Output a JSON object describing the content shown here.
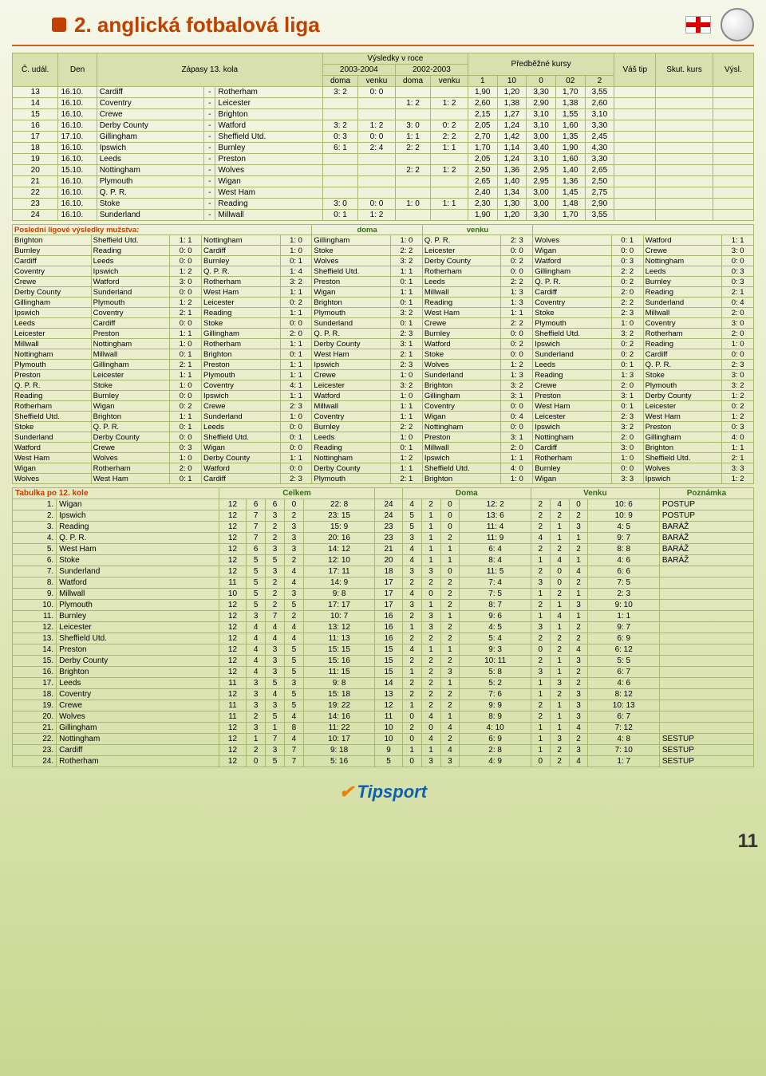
{
  "header": {
    "title": "2. anglická fotbalová liga",
    "page_number": "11",
    "tipsport": "Tipsport"
  },
  "matches_header": {
    "c_udal": "Č. udál.",
    "den": "Den",
    "zapasy": "Zápasy 13. kola",
    "vysledky": "Výsledky v roce",
    "y0304": "2003-2004",
    "y0203": "2002-2003",
    "doma": "doma",
    "venku": "venku",
    "predbezne": "Předběžné kursy",
    "k1": "1",
    "k10": "10",
    "k0": "0",
    "k02": "02",
    "k2": "2",
    "vas_tip": "Váš tip",
    "skut": "Skut. kurs",
    "vysl": "Výsl."
  },
  "matches": [
    {
      "n": "13",
      "d": "16.10.",
      "h": "Cardiff",
      "a": "Rotherham",
      "r1": "3: 2",
      "r2": "0: 0",
      "r3": "",
      "r4": "",
      "o1": "1,90",
      "o2": "1,20",
      "o3": "3,30",
      "o4": "1,70",
      "o5": "3,55"
    },
    {
      "n": "14",
      "d": "16.10.",
      "h": "Coventry",
      "a": "Leicester",
      "r1": "",
      "r2": "",
      "r3": "1: 2",
      "r4": "1: 2",
      "o1": "2,60",
      "o2": "1,38",
      "o3": "2,90",
      "o4": "1,38",
      "o5": "2,60"
    },
    {
      "n": "15",
      "d": "16.10.",
      "h": "Crewe",
      "a": "Brighton",
      "r1": "",
      "r2": "",
      "r3": "",
      "r4": "",
      "o1": "2,15",
      "o2": "1,27",
      "o3": "3,10",
      "o4": "1,55",
      "o5": "3,10"
    },
    {
      "n": "16",
      "d": "16.10.",
      "h": "Derby County",
      "a": "Watford",
      "r1": "3: 2",
      "r2": "1: 2",
      "r3": "3: 0",
      "r4": "0: 2",
      "o1": "2,05",
      "o2": "1,24",
      "o3": "3,10",
      "o4": "1,60",
      "o5": "3,30"
    },
    {
      "n": "17",
      "d": "17.10.",
      "h": "Gillingham",
      "a": "Sheffield Utd.",
      "r1": "0: 3",
      "r2": "0: 0",
      "r3": "1: 1",
      "r4": "2: 2",
      "o1": "2,70",
      "o2": "1,42",
      "o3": "3,00",
      "o4": "1,35",
      "o5": "2,45"
    },
    {
      "n": "18",
      "d": "16.10.",
      "h": "Ipswich",
      "a": "Burnley",
      "r1": "6: 1",
      "r2": "2: 4",
      "r3": "2: 2",
      "r4": "1: 1",
      "o1": "1,70",
      "o2": "1,14",
      "o3": "3,40",
      "o4": "1,90",
      "o5": "4,30"
    },
    {
      "n": "19",
      "d": "16.10.",
      "h": "Leeds",
      "a": "Preston",
      "r1": "",
      "r2": "",
      "r3": "",
      "r4": "",
      "o1": "2,05",
      "o2": "1,24",
      "o3": "3,10",
      "o4": "1,60",
      "o5": "3,30"
    },
    {
      "n": "20",
      "d": "15.10.",
      "h": "Nottingham",
      "a": "Wolves",
      "r1": "",
      "r2": "",
      "r3": "2: 2",
      "r4": "1: 2",
      "o1": "2,50",
      "o2": "1,36",
      "o3": "2,95",
      "o4": "1,40",
      "o5": "2,65"
    },
    {
      "n": "21",
      "d": "16.10.",
      "h": "Plymouth",
      "a": "Wigan",
      "r1": "",
      "r2": "",
      "r3": "",
      "r4": "",
      "o1": "2,65",
      "o2": "1,40",
      "o3": "2,95",
      "o4": "1,36",
      "o5": "2,50"
    },
    {
      "n": "22",
      "d": "16.10.",
      "h": "Q. P. R.",
      "a": "West Ham",
      "r1": "",
      "r2": "",
      "r3": "",
      "r4": "",
      "o1": "2,40",
      "o2": "1,34",
      "o3": "3,00",
      "o4": "1,45",
      "o5": "2,75"
    },
    {
      "n": "23",
      "d": "16.10.",
      "h": "Stoke",
      "a": "Reading",
      "r1": "3: 0",
      "r2": "0: 0",
      "r3": "1: 0",
      "r4": "1: 1",
      "o1": "2,30",
      "o2": "1,30",
      "o3": "3,00",
      "o4": "1,48",
      "o5": "2,90"
    },
    {
      "n": "24",
      "d": "16.10.",
      "h": "Sunderland",
      "a": "Millwall",
      "r1": "0: 1",
      "r2": "1: 2",
      "r3": "",
      "r4": "",
      "o1": "1,90",
      "o2": "1,20",
      "o3": "3,30",
      "o4": "1,70",
      "o5": "3,55"
    }
  ],
  "results_title": "Poslední ligové výsledky mužstva:",
  "results_doma": "doma",
  "results_venku": "venku",
  "results": [
    [
      "Brighton",
      "Sheffield Utd.",
      "1: 1",
      "Nottingham",
      "1: 0",
      "Gillingham",
      "1: 0",
      "Q. P. R.",
      "2: 3",
      "Wolves",
      "0: 1",
      "Watford",
      "1: 1"
    ],
    [
      "Burnley",
      "Reading",
      "0: 0",
      "Cardiff",
      "1: 0",
      "Stoke",
      "2: 2",
      "Leicester",
      "0: 0",
      "Wigan",
      "0: 0",
      "Crewe",
      "3: 0"
    ],
    [
      "Cardiff",
      "Leeds",
      "0: 0",
      "Burnley",
      "0: 1",
      "Wolves",
      "3: 2",
      "Derby County",
      "0: 2",
      "Watford",
      "0: 3",
      "Nottingham",
      "0: 0"
    ],
    [
      "Coventry",
      "Ipswich",
      "1: 2",
      "Q. P. R.",
      "1: 4",
      "Sheffield Utd.",
      "1: 1",
      "Rotherham",
      "0: 0",
      "Gillingham",
      "2: 2",
      "Leeds",
      "0: 3"
    ],
    [
      "Crewe",
      "Watford",
      "3: 0",
      "Rotherham",
      "3: 2",
      "Preston",
      "0: 1",
      "Leeds",
      "2: 2",
      "Q. P. R.",
      "0: 2",
      "Burnley",
      "0: 3"
    ],
    [
      "Derby County",
      "Sunderland",
      "0: 0",
      "West Ham",
      "1: 1",
      "Wigan",
      "1: 1",
      "Millwall",
      "1: 3",
      "Cardiff",
      "2: 0",
      "Reading",
      "2: 1"
    ],
    [
      "Gillingham",
      "Plymouth",
      "1: 2",
      "Leicester",
      "0: 2",
      "Brighton",
      "0: 1",
      "Reading",
      "1: 3",
      "Coventry",
      "2: 2",
      "Sunderland",
      "0: 4"
    ],
    [
      "Ipswich",
      "Coventry",
      "2: 1",
      "Reading",
      "1: 1",
      "Plymouth",
      "3: 2",
      "West Ham",
      "1: 1",
      "Stoke",
      "2: 3",
      "Millwall",
      "2: 0"
    ],
    [
      "Leeds",
      "Cardiff",
      "0: 0",
      "Stoke",
      "0: 0",
      "Sunderland",
      "0: 1",
      "Crewe",
      "2: 2",
      "Plymouth",
      "1: 0",
      "Coventry",
      "3: 0"
    ],
    [
      "Leicester",
      "Preston",
      "1: 1",
      "Gillingham",
      "2: 0",
      "Q. P. R.",
      "2: 3",
      "Burnley",
      "0: 0",
      "Sheffield Utd.",
      "3: 2",
      "Rotherham",
      "2: 0"
    ],
    [
      "Millwall",
      "Nottingham",
      "1: 0",
      "Rotherham",
      "1: 1",
      "Derby County",
      "3: 1",
      "Watford",
      "0: 2",
      "Ipswich",
      "0: 2",
      "Reading",
      "1: 0"
    ],
    [
      "Nottingham",
      "Millwall",
      "0: 1",
      "Brighton",
      "0: 1",
      "West Ham",
      "2: 1",
      "Stoke",
      "0: 0",
      "Sunderland",
      "0: 2",
      "Cardiff",
      "0: 0"
    ],
    [
      "Plymouth",
      "Gillingham",
      "2: 1",
      "Preston",
      "1: 1",
      "Ipswich",
      "2: 3",
      "Wolves",
      "1: 2",
      "Leeds",
      "0: 1",
      "Q. P. R.",
      "2: 3"
    ],
    [
      "Preston",
      "Leicester",
      "1: 1",
      "Plymouth",
      "1: 1",
      "Crewe",
      "1: 0",
      "Sunderland",
      "1: 3",
      "Reading",
      "1: 3",
      "Stoke",
      "3: 0"
    ],
    [
      "Q. P. R.",
      "Stoke",
      "1: 0",
      "Coventry",
      "4: 1",
      "Leicester",
      "3: 2",
      "Brighton",
      "3: 2",
      "Crewe",
      "2: 0",
      "Plymouth",
      "3: 2"
    ],
    [
      "Reading",
      "Burnley",
      "0: 0",
      "Ipswich",
      "1: 1",
      "Watford",
      "1: 0",
      "Gillingham",
      "3: 1",
      "Preston",
      "3: 1",
      "Derby County",
      "1: 2"
    ],
    [
      "Rotherham",
      "Wigan",
      "0: 2",
      "Crewe",
      "2: 3",
      "Millwall",
      "1: 1",
      "Coventry",
      "0: 0",
      "West Ham",
      "0: 1",
      "Leicester",
      "0: 2"
    ],
    [
      "Sheffield Utd.",
      "Brighton",
      "1: 1",
      "Sunderland",
      "1: 0",
      "Coventry",
      "1: 1",
      "Wigan",
      "0: 4",
      "Leicester",
      "2: 3",
      "West Ham",
      "1: 2"
    ],
    [
      "Stoke",
      "Q. P. R.",
      "0: 1",
      "Leeds",
      "0: 0",
      "Burnley",
      "2: 2",
      "Nottingham",
      "0: 0",
      "Ipswich",
      "3: 2",
      "Preston",
      "0: 3"
    ],
    [
      "Sunderland",
      "Derby County",
      "0: 0",
      "Sheffield Utd.",
      "0: 1",
      "Leeds",
      "1: 0",
      "Preston",
      "3: 1",
      "Nottingham",
      "2: 0",
      "Gillingham",
      "4: 0"
    ],
    [
      "Watford",
      "Crewe",
      "0: 3",
      "Wigan",
      "0: 0",
      "Reading",
      "0: 1",
      "Millwall",
      "2: 0",
      "Cardiff",
      "3: 0",
      "Brighton",
      "1: 1"
    ],
    [
      "West Ham",
      "Wolves",
      "1: 0",
      "Derby County",
      "1: 1",
      "Nottingham",
      "1: 2",
      "Ipswich",
      "1: 1",
      "Rotherham",
      "1: 0",
      "Sheffield Utd.",
      "2: 1"
    ],
    [
      "Wigan",
      "Rotherham",
      "2: 0",
      "Watford",
      "0: 0",
      "Derby County",
      "1: 1",
      "Sheffield Utd.",
      "4: 0",
      "Burnley",
      "0: 0",
      "Wolves",
      "3: 3"
    ],
    [
      "Wolves",
      "West Ham",
      "0: 1",
      "Cardiff",
      "2: 3",
      "Plymouth",
      "2: 1",
      "Brighton",
      "1: 0",
      "Wigan",
      "3: 3",
      "Ipswich",
      "1: 2"
    ]
  ],
  "standings_title": "Tabulka po 12. kole",
  "standings_hdr": {
    "celkem": "Celkem",
    "doma": "Doma",
    "venku": "Venku",
    "pozn": "Poznámka"
  },
  "standings": [
    {
      "p": "1.",
      "t": "Wigan",
      "gp": "12",
      "w": "6",
      "d": "6",
      "l": "0",
      "gf": "22: 8",
      "pts": "24",
      "hw": "4",
      "hd": "2",
      "hl": "0",
      "hg": "12: 2",
      "aw": "2",
      "ad": "4",
      "al": "0",
      "ag": "10: 6",
      "note": "POSTUP"
    },
    {
      "p": "2.",
      "t": "Ipswich",
      "gp": "12",
      "w": "7",
      "d": "3",
      "l": "2",
      "gf": "23: 15",
      "pts": "24",
      "hw": "5",
      "hd": "1",
      "hl": "0",
      "hg": "13: 6",
      "aw": "2",
      "ad": "2",
      "al": "2",
      "ag": "10: 9",
      "note": "POSTUP"
    },
    {
      "p": "3.",
      "t": "Reading",
      "gp": "12",
      "w": "7",
      "d": "2",
      "l": "3",
      "gf": "15: 9",
      "pts": "23",
      "hw": "5",
      "hd": "1",
      "hl": "0",
      "hg": "11: 4",
      "aw": "2",
      "ad": "1",
      "al": "3",
      "ag": "4: 5",
      "note": "BARÁŽ"
    },
    {
      "p": "4.",
      "t": "Q. P. R.",
      "gp": "12",
      "w": "7",
      "d": "2",
      "l": "3",
      "gf": "20: 16",
      "pts": "23",
      "hw": "3",
      "hd": "1",
      "hl": "2",
      "hg": "11: 9",
      "aw": "4",
      "ad": "1",
      "al": "1",
      "ag": "9: 7",
      "note": "BARÁŽ"
    },
    {
      "p": "5.",
      "t": "West Ham",
      "gp": "12",
      "w": "6",
      "d": "3",
      "l": "3",
      "gf": "14: 12",
      "pts": "21",
      "hw": "4",
      "hd": "1",
      "hl": "1",
      "hg": "6: 4",
      "aw": "2",
      "ad": "2",
      "al": "2",
      "ag": "8: 8",
      "note": "BARÁŽ"
    },
    {
      "p": "6.",
      "t": "Stoke",
      "gp": "12",
      "w": "5",
      "d": "5",
      "l": "2",
      "gf": "12: 10",
      "pts": "20",
      "hw": "4",
      "hd": "1",
      "hl": "1",
      "hg": "8: 4",
      "aw": "1",
      "ad": "4",
      "al": "1",
      "ag": "4: 6",
      "note": "BARÁŽ"
    },
    {
      "p": "7.",
      "t": "Sunderland",
      "gp": "12",
      "w": "5",
      "d": "3",
      "l": "4",
      "gf": "17: 11",
      "pts": "18",
      "hw": "3",
      "hd": "3",
      "hl": "0",
      "hg": "11: 5",
      "aw": "2",
      "ad": "0",
      "al": "4",
      "ag": "6: 6",
      "note": ""
    },
    {
      "p": "8.",
      "t": "Watford",
      "gp": "11",
      "w": "5",
      "d": "2",
      "l": "4",
      "gf": "14: 9",
      "pts": "17",
      "hw": "2",
      "hd": "2",
      "hl": "2",
      "hg": "7: 4",
      "aw": "3",
      "ad": "0",
      "al": "2",
      "ag": "7: 5",
      "note": ""
    },
    {
      "p": "9.",
      "t": "Millwall",
      "gp": "10",
      "w": "5",
      "d": "2",
      "l": "3",
      "gf": "9: 8",
      "pts": "17",
      "hw": "4",
      "hd": "0",
      "hl": "2",
      "hg": "7: 5",
      "aw": "1",
      "ad": "2",
      "al": "1",
      "ag": "2: 3",
      "note": ""
    },
    {
      "p": "10.",
      "t": "Plymouth",
      "gp": "12",
      "w": "5",
      "d": "2",
      "l": "5",
      "gf": "17: 17",
      "pts": "17",
      "hw": "3",
      "hd": "1",
      "hl": "2",
      "hg": "8: 7",
      "aw": "2",
      "ad": "1",
      "al": "3",
      "ag": "9: 10",
      "note": ""
    },
    {
      "p": "11.",
      "t": "Burnley",
      "gp": "12",
      "w": "3",
      "d": "7",
      "l": "2",
      "gf": "10: 7",
      "pts": "16",
      "hw": "2",
      "hd": "3",
      "hl": "1",
      "hg": "9: 6",
      "aw": "1",
      "ad": "4",
      "al": "1",
      "ag": "1: 1",
      "note": ""
    },
    {
      "p": "12.",
      "t": "Leicester",
      "gp": "12",
      "w": "4",
      "d": "4",
      "l": "4",
      "gf": "13: 12",
      "pts": "16",
      "hw": "1",
      "hd": "3",
      "hl": "2",
      "hg": "4: 5",
      "aw": "3",
      "ad": "1",
      "al": "2",
      "ag": "9: 7",
      "note": ""
    },
    {
      "p": "13.",
      "t": "Sheffield Utd.",
      "gp": "12",
      "w": "4",
      "d": "4",
      "l": "4",
      "gf": "11: 13",
      "pts": "16",
      "hw": "2",
      "hd": "2",
      "hl": "2",
      "hg": "5: 4",
      "aw": "2",
      "ad": "2",
      "al": "2",
      "ag": "6: 9",
      "note": ""
    },
    {
      "p": "14.",
      "t": "Preston",
      "gp": "12",
      "w": "4",
      "d": "3",
      "l": "5",
      "gf": "15: 15",
      "pts": "15",
      "hw": "4",
      "hd": "1",
      "hl": "1",
      "hg": "9: 3",
      "aw": "0",
      "ad": "2",
      "al": "4",
      "ag": "6: 12",
      "note": ""
    },
    {
      "p": "15.",
      "t": "Derby County",
      "gp": "12",
      "w": "4",
      "d": "3",
      "l": "5",
      "gf": "15: 16",
      "pts": "15",
      "hw": "2",
      "hd": "2",
      "hl": "2",
      "hg": "10: 11",
      "aw": "2",
      "ad": "1",
      "al": "3",
      "ag": "5: 5",
      "note": ""
    },
    {
      "p": "16.",
      "t": "Brighton",
      "gp": "12",
      "w": "4",
      "d": "3",
      "l": "5",
      "gf": "11: 15",
      "pts": "15",
      "hw": "1",
      "hd": "2",
      "hl": "3",
      "hg": "5: 8",
      "aw": "3",
      "ad": "1",
      "al": "2",
      "ag": "6: 7",
      "note": ""
    },
    {
      "p": "17.",
      "t": "Leeds",
      "gp": "11",
      "w": "3",
      "d": "5",
      "l": "3",
      "gf": "9: 8",
      "pts": "14",
      "hw": "2",
      "hd": "2",
      "hl": "1",
      "hg": "5: 2",
      "aw": "1",
      "ad": "3",
      "al": "2",
      "ag": "4: 6",
      "note": ""
    },
    {
      "p": "18.",
      "t": "Coventry",
      "gp": "12",
      "w": "3",
      "d": "4",
      "l": "5",
      "gf": "15: 18",
      "pts": "13",
      "hw": "2",
      "hd": "2",
      "hl": "2",
      "hg": "7: 6",
      "aw": "1",
      "ad": "2",
      "al": "3",
      "ag": "8: 12",
      "note": ""
    },
    {
      "p": "19.",
      "t": "Crewe",
      "gp": "11",
      "w": "3",
      "d": "3",
      "l": "5",
      "gf": "19: 22",
      "pts": "12",
      "hw": "1",
      "hd": "2",
      "hl": "2",
      "hg": "9: 9",
      "aw": "2",
      "ad": "1",
      "al": "3",
      "ag": "10: 13",
      "note": ""
    },
    {
      "p": "20.",
      "t": "Wolves",
      "gp": "11",
      "w": "2",
      "d": "5",
      "l": "4",
      "gf": "14: 16",
      "pts": "11",
      "hw": "0",
      "hd": "4",
      "hl": "1",
      "hg": "8: 9",
      "aw": "2",
      "ad": "1",
      "al": "3",
      "ag": "6: 7",
      "note": ""
    },
    {
      "p": "21.",
      "t": "Gillingham",
      "gp": "12",
      "w": "3",
      "d": "1",
      "l": "8",
      "gf": "11: 22",
      "pts": "10",
      "hw": "2",
      "hd": "0",
      "hl": "4",
      "hg": "4: 10",
      "aw": "1",
      "ad": "1",
      "al": "4",
      "ag": "7: 12",
      "note": ""
    },
    {
      "p": "22.",
      "t": "Nottingham",
      "gp": "12",
      "w": "1",
      "d": "7",
      "l": "4",
      "gf": "10: 17",
      "pts": "10",
      "hw": "0",
      "hd": "4",
      "hl": "2",
      "hg": "6: 9",
      "aw": "1",
      "ad": "3",
      "al": "2",
      "ag": "4: 8",
      "note": "SESTUP"
    },
    {
      "p": "23.",
      "t": "Cardiff",
      "gp": "12",
      "w": "2",
      "d": "3",
      "l": "7",
      "gf": "9: 18",
      "pts": "9",
      "hw": "1",
      "hd": "1",
      "hl": "4",
      "hg": "2: 8",
      "aw": "1",
      "ad": "2",
      "al": "3",
      "ag": "7: 10",
      "note": "SESTUP"
    },
    {
      "p": "24.",
      "t": "Rotherham",
      "gp": "12",
      "w": "0",
      "d": "5",
      "l": "7",
      "gf": "5: 16",
      "pts": "5",
      "hw": "0",
      "hd": "3",
      "hl": "3",
      "hg": "4: 9",
      "aw": "0",
      "ad": "2",
      "al": "4",
      "ag": "1: 7",
      "note": "SESTUP"
    }
  ]
}
